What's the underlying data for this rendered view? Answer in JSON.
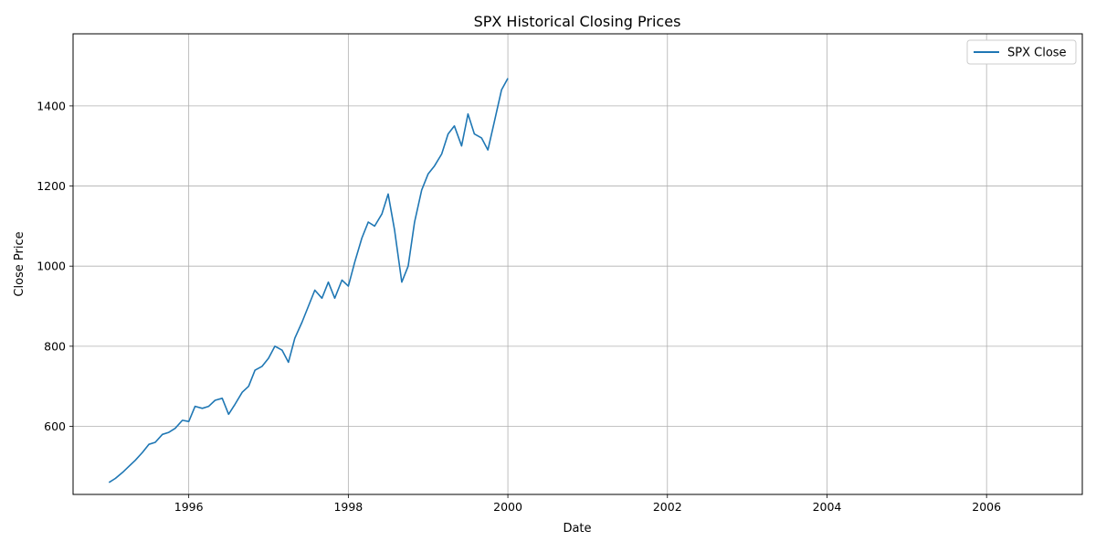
{
  "chart_data": {
    "type": "line",
    "title": "SPX Historical Closing Prices",
    "xlabel": "Date",
    "ylabel": "Close Price",
    "xlim": [
      1994.55,
      2007.2
    ],
    "ylim": [
      430,
      1580
    ],
    "x_ticks": [
      {
        "value": 1996,
        "label": "1996"
      },
      {
        "value": 1998,
        "label": "1998"
      },
      {
        "value": 2000,
        "label": "2000"
      },
      {
        "value": 2002,
        "label": "2002"
      },
      {
        "value": 2004,
        "label": "2004"
      },
      {
        "value": 2006,
        "label": "2006"
      }
    ],
    "y_ticks": [
      {
        "value": 600,
        "label": "600"
      },
      {
        "value": 800,
        "label": "800"
      },
      {
        "value": 1000,
        "label": "1000"
      },
      {
        "value": 1200,
        "label": "1200"
      },
      {
        "value": 1400,
        "label": "1400"
      }
    ],
    "grid": true,
    "legend": {
      "position": "top-right"
    },
    "series": [
      {
        "name": "SPX Close",
        "color": "#1f77b4",
        "points": [
          [
            1995.0,
            460
          ],
          [
            1995.08,
            470
          ],
          [
            1995.17,
            485
          ],
          [
            1995.25,
            500
          ],
          [
            1995.33,
            515
          ],
          [
            1995.42,
            535
          ],
          [
            1995.5,
            555
          ],
          [
            1995.58,
            560
          ],
          [
            1995.67,
            580
          ],
          [
            1995.75,
            585
          ],
          [
            1995.83,
            595
          ],
          [
            1995.92,
            615
          ],
          [
            2000.0,
            1469
          ],
          [
            1996.0,
            612
          ],
          [
            1996.08,
            650
          ],
          [
            1996.17,
            645
          ],
          [
            1996.25,
            650
          ],
          [
            1996.33,
            665
          ],
          [
            1996.42,
            670
          ],
          [
            1996.5,
            630
          ],
          [
            1996.58,
            655
          ],
          [
            1996.67,
            685
          ],
          [
            1996.75,
            700
          ],
          [
            1996.83,
            740
          ],
          [
            1996.92,
            750
          ],
          [
            1997.0,
            770
          ],
          [
            1997.08,
            800
          ],
          [
            1997.17,
            790
          ],
          [
            1997.25,
            760
          ],
          [
            1997.33,
            820
          ],
          [
            1997.42,
            860
          ],
          [
            1997.5,
            900
          ],
          [
            1997.58,
            940
          ],
          [
            1997.67,
            920
          ],
          [
            1997.75,
            960
          ],
          [
            1997.83,
            920
          ],
          [
            1997.92,
            965
          ],
          [
            1998.0,
            950
          ],
          [
            1998.08,
            1010
          ],
          [
            1998.17,
            1070
          ],
          [
            1998.25,
            1110
          ],
          [
            1998.33,
            1100
          ],
          [
            1998.42,
            1130
          ],
          [
            1998.5,
            1180
          ],
          [
            1998.58,
            1090
          ],
          [
            1998.67,
            960
          ],
          [
            1998.75,
            1000
          ],
          [
            1998.83,
            1110
          ],
          [
            1998.92,
            1190
          ],
          [
            1999.0,
            1230
          ],
          [
            1999.08,
            1250
          ],
          [
            1999.17,
            1280
          ],
          [
            1999.25,
            1330
          ],
          [
            1999.33,
            1350
          ],
          [
            1999.42,
            1300
          ],
          [
            1999.5,
            1380
          ],
          [
            1999.58,
            1330
          ],
          [
            1999.67,
            1320
          ],
          [
            1999.75,
            1290
          ],
          [
            1999.83,
            1360
          ],
          [
            1999.92,
            1440
          ]
        ]
      }
    ]
  }
}
